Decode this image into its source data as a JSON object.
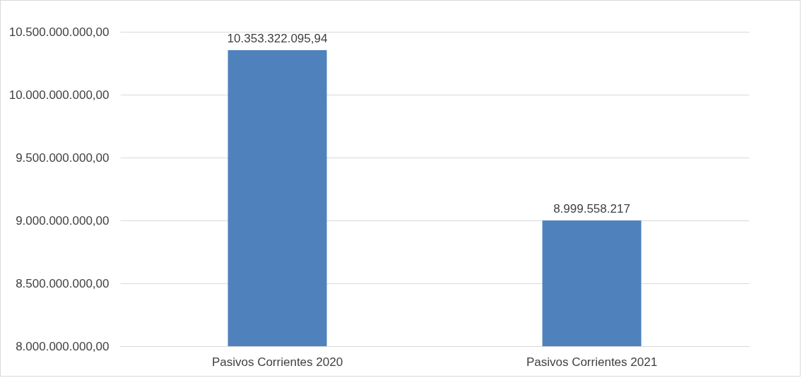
{
  "chart_data": {
    "type": "bar",
    "categories": [
      "Pasivos Corrientes 2020",
      "Pasivos Corrientes 2021"
    ],
    "values": [
      10353322095.94,
      8999558217
    ],
    "value_labels": [
      "10.353.322.095,94",
      "8.999.558.217"
    ],
    "color": "#4f81bd",
    "ylim": [
      8000000000,
      10500000000
    ],
    "yticks": [
      {
        "value": 8000000000,
        "label": "8.000.000.000,00"
      },
      {
        "value": 8500000000,
        "label": "8.500.000.000,00"
      },
      {
        "value": 9000000000,
        "label": "9.000.000.000,00"
      },
      {
        "value": 9500000000,
        "label": "9.500.000.000,00"
      },
      {
        "value": 10000000000,
        "label": "10.000.000.000,00"
      },
      {
        "value": 10500000000,
        "label": "10.500.000.000,00"
      }
    ],
    "grid": "y"
  }
}
